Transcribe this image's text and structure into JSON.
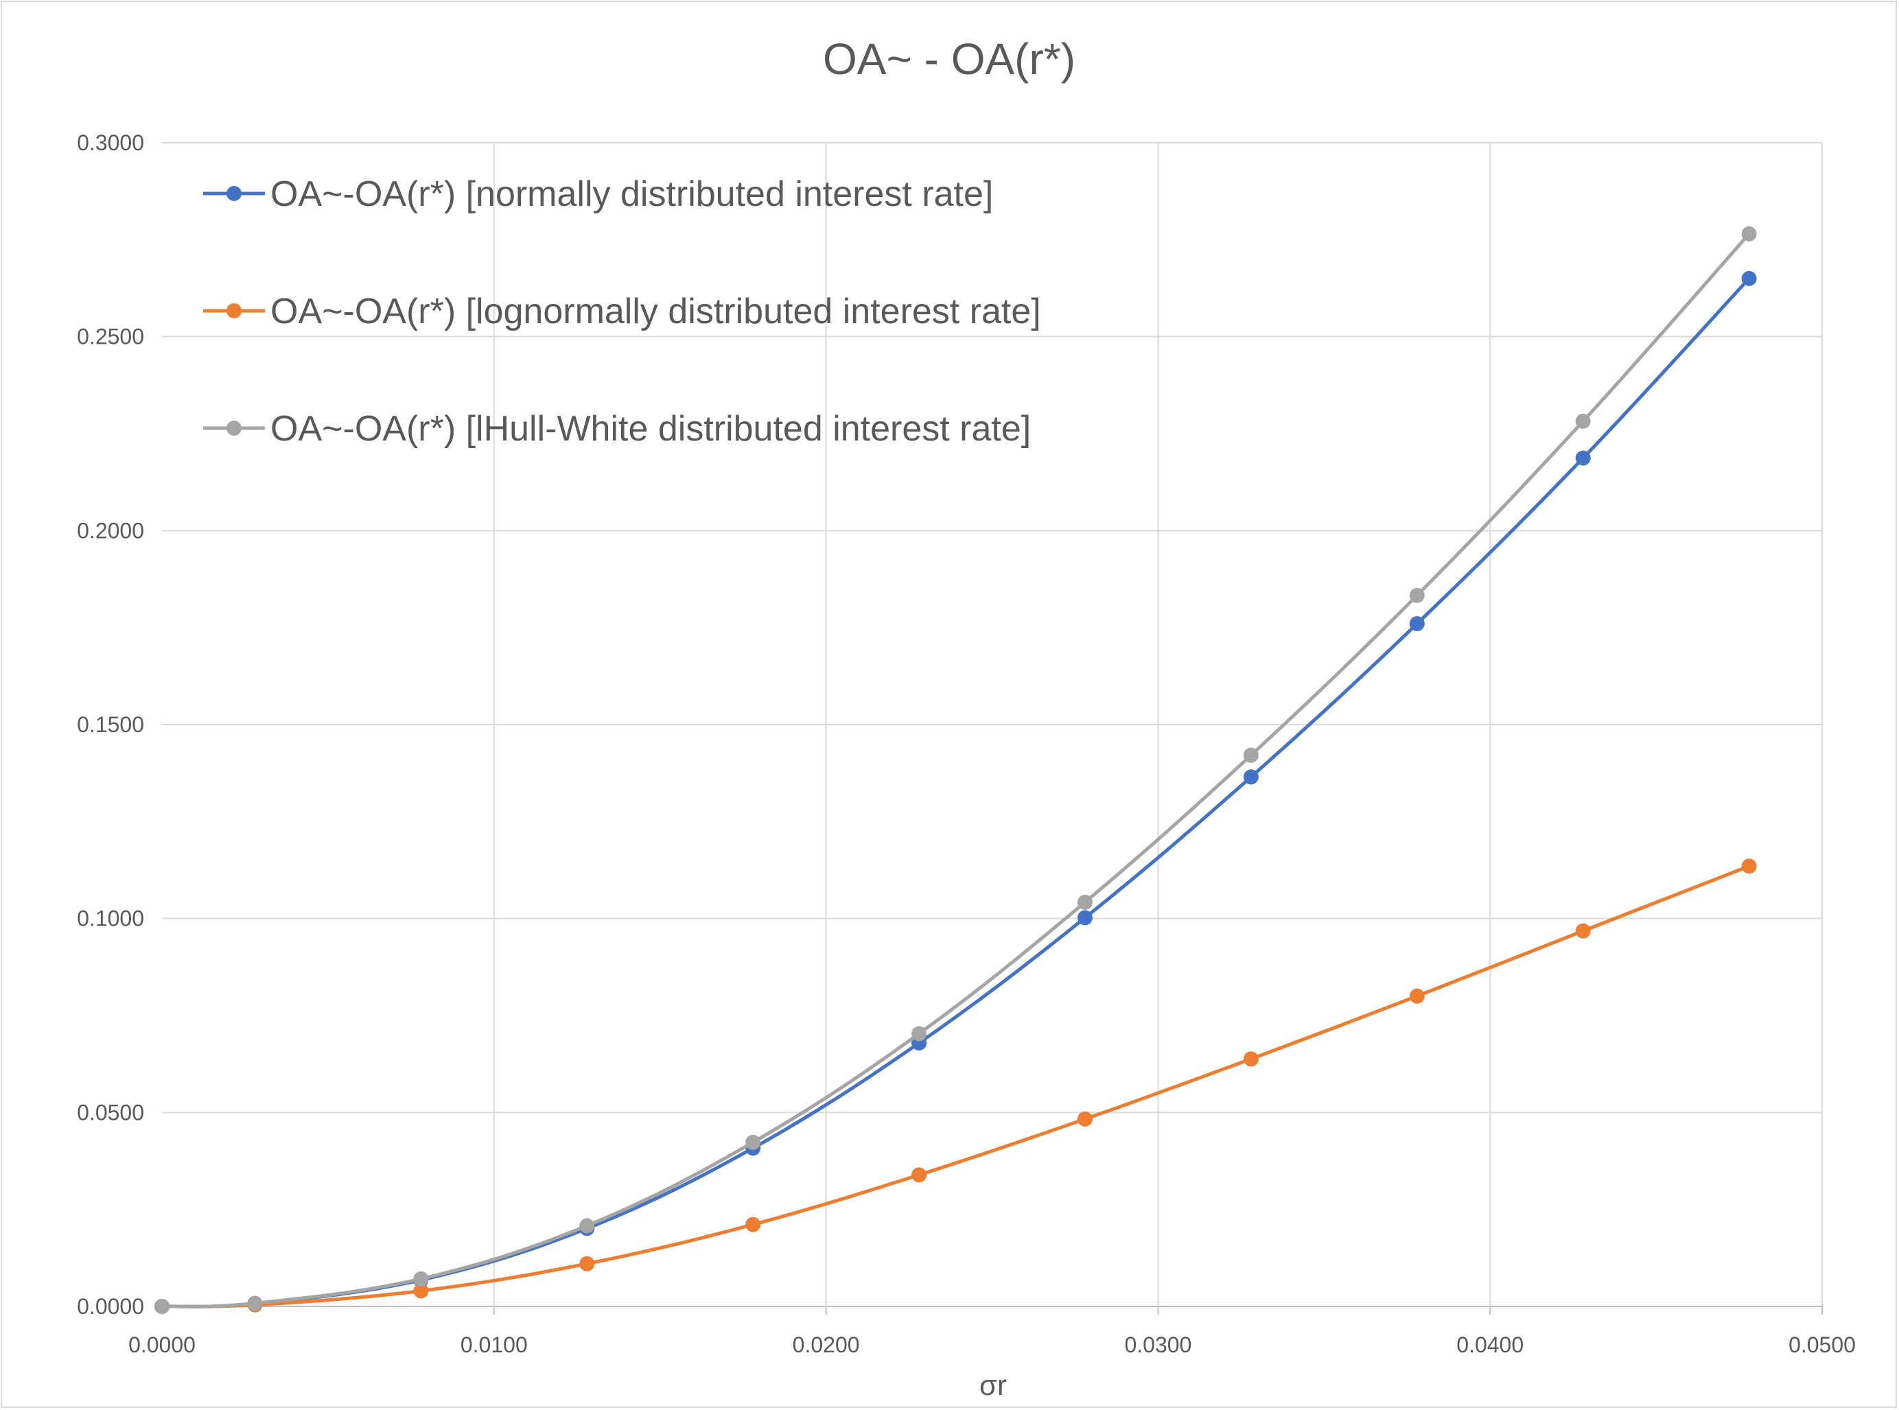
{
  "chart_data": {
    "type": "line",
    "title": "OA~ - OA(r*)",
    "xlabel": "σr",
    "ylabel": "",
    "xlim": [
      0,
      0.05
    ],
    "ylim": [
      0,
      0.3
    ],
    "x_ticks": [
      "0.0000",
      "0.0100",
      "0.0200",
      "0.0300",
      "0.0400",
      "0.0500"
    ],
    "y_ticks": [
      "0.0000",
      "0.0500",
      "0.1000",
      "0.1500",
      "0.2000",
      "0.2500",
      "0.3000"
    ],
    "grid": true,
    "legend_position": "top-left",
    "x": [
      0.0,
      0.0028,
      0.0078,
      0.0128,
      0.0178,
      0.0228,
      0.0278,
      0.0328,
      0.0378,
      0.0428,
      0.0478
    ],
    "series": [
      {
        "name": "OA~-OA(r*) [normally distributed interest rate]",
        "color": "#4472c4",
        "values": [
          0.0,
          0.0007,
          0.0068,
          0.0201,
          0.0408,
          0.0679,
          0.1002,
          0.1365,
          0.176,
          0.2187,
          0.265
        ]
      },
      {
        "name": "OA~-OA(r*) [lognormally distributed interest rate]",
        "color": "#ed7d31",
        "values": [
          0.0,
          0.0004,
          0.004,
          0.011,
          0.0211,
          0.0339,
          0.0483,
          0.0638,
          0.08,
          0.0968,
          0.1135
        ]
      },
      {
        "name": "OA~-OA(r*) [lHull-White distributed interest rate]",
        "color": "#a5a5a5",
        "values": [
          0.0,
          0.0008,
          0.0071,
          0.0208,
          0.0423,
          0.0703,
          0.1042,
          0.1421,
          0.1833,
          0.2282,
          0.2765
        ]
      }
    ]
  }
}
